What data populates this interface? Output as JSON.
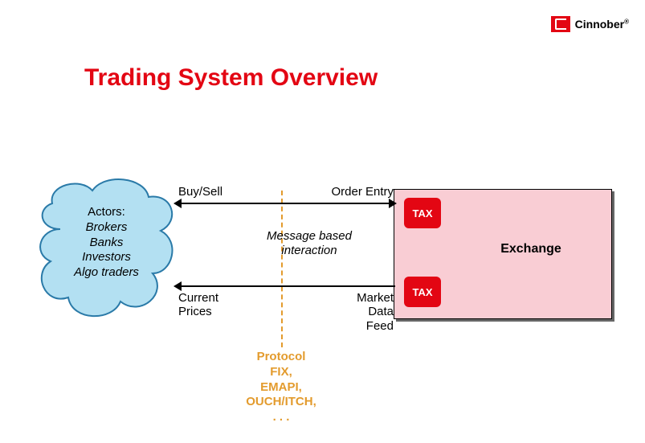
{
  "brand": {
    "name": "Cinnober"
  },
  "title": "Trading System Overview",
  "cloud": {
    "heading": "Actors:",
    "items": [
      "Brokers",
      "Banks",
      "Investors",
      "Algo traders"
    ],
    "fill": "#b3e0f2",
    "stroke": "#2a7aa8"
  },
  "exchange": {
    "label": "Exchange",
    "fill": "#f9cdd4",
    "tax_label": "TAX",
    "tax_color": "#e30613"
  },
  "arrows": {
    "top": {
      "left_label": "Buy/Sell",
      "right_label": "Order Entry",
      "type": "both"
    },
    "bottom": {
      "left_label": "Current\nPrices",
      "right_label": "Market\nData\nFeed",
      "type": "left"
    }
  },
  "center_note": "Message based\ninteraction",
  "protocol": {
    "heading": "Protocol",
    "lines": [
      "FIX,",
      "EMAPI,",
      "OUCH/ITCH,",
      ". . ."
    ],
    "color": "#e39b2d"
  },
  "colors": {
    "accent": "#e30613",
    "background": "#ffffff"
  }
}
